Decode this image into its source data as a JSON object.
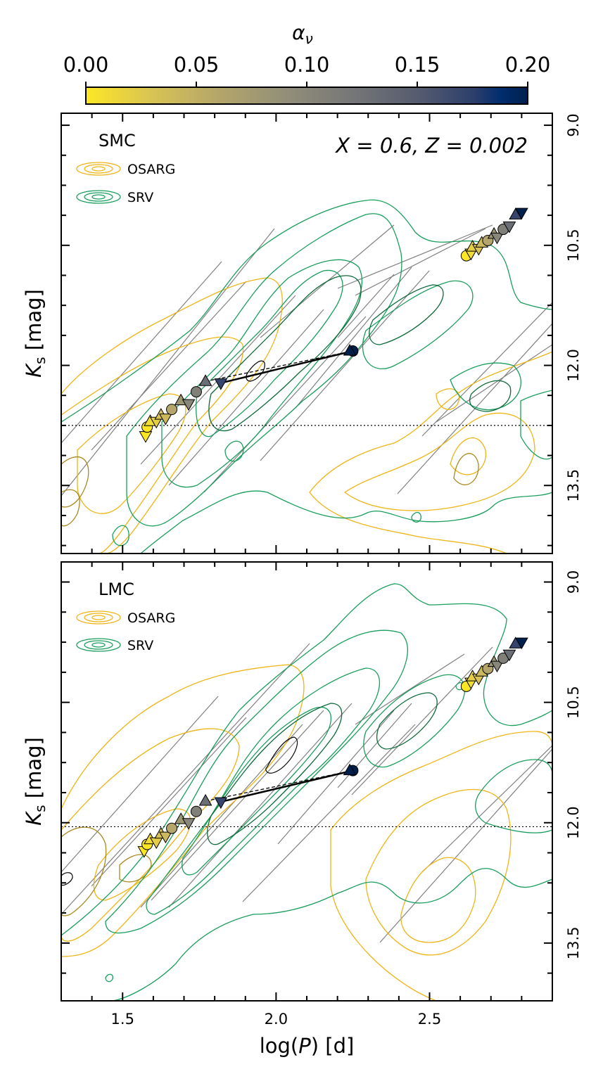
{
  "colorbar": {
    "label": "α",
    "label_sub": "ν",
    "ticks": [
      "0.00",
      "0.05",
      "0.10",
      "0.15",
      "0.20"
    ],
    "tick_values": [
      0.0,
      0.05,
      0.1,
      0.15,
      0.2
    ],
    "range": [
      0.0,
      0.2
    ],
    "colors": [
      "#fde725",
      "#c9b45a",
      "#a09c73",
      "#7b7b7b",
      "#555a6e",
      "#2e3f6e",
      "#0a2d6e",
      "#00204c"
    ]
  },
  "xaxis": {
    "label_prefix": "log(",
    "label_var": "P",
    "label_suffix": ") [d]",
    "ticks": [
      "1.5",
      "2.0",
      "2.5"
    ],
    "tick_values": [
      1.5,
      2.0,
      2.5
    ],
    "range": [
      1.3,
      2.9
    ]
  },
  "panels": [
    {
      "galaxy": "SMC",
      "annotation": "X = 0.6, Z = 0.002",
      "legend": [
        "OSARG",
        "SRV"
      ],
      "ylabel_var": "K",
      "ylabel_sub": "s",
      "ylabel_suffix": " [mag]",
      "yticks": [
        "9.0",
        "10.5",
        "12.0",
        "13.5"
      ],
      "ytick_values": [
        9.0,
        10.5,
        12.0,
        13.5
      ],
      "ylim": [
        8.85,
        14.35
      ],
      "hline": 12.75
    },
    {
      "galaxy": "LMC",
      "annotation": "",
      "legend": [
        "OSARG",
        "SRV"
      ],
      "ylabel_var": "K",
      "ylabel_sub": "s",
      "ylabel_suffix": " [mag]",
      "yticks": [
        "9.0",
        "10.5",
        "12.0",
        "13.5"
      ],
      "ytick_values": [
        9.0,
        10.5,
        12.0,
        13.5
      ],
      "ylim": [
        8.75,
        14.22
      ],
      "hline": 12.05
    }
  ],
  "colors": {
    "osarg": "#efb415",
    "osarg_dark": "#a88a20",
    "srv": "#1a9e5c",
    "srv_dark": "#0d6a3a",
    "guide_lines": "#808080"
  },
  "chart_data": [
    {
      "type": "scatter",
      "panel": "SMC",
      "x_label": "log(P) [d]",
      "y_label": "Ks [mag]",
      "xlim": [
        1.3,
        2.9
      ],
      "ylim": [
        8.85,
        14.35
      ],
      "y_inverted": true,
      "markers": [
        {
          "x": 1.575,
          "y": 12.88,
          "alpha": 0.0,
          "marker": "v"
        },
        {
          "x": 1.58,
          "y": 12.77,
          "alpha": 0.0,
          "marker": "o"
        },
        {
          "x": 1.59,
          "y": 12.7,
          "alpha": 0.01,
          "marker": "^"
        },
        {
          "x": 1.61,
          "y": 12.7,
          "alpha": 0.02,
          "marker": "v"
        },
        {
          "x": 1.625,
          "y": 12.62,
          "alpha": 0.03,
          "marker": "^"
        },
        {
          "x": 1.64,
          "y": 12.66,
          "alpha": 0.04,
          "marker": "v"
        },
        {
          "x": 1.66,
          "y": 12.55,
          "alpha": 0.06,
          "marker": "o"
        },
        {
          "x": 1.69,
          "y": 12.44,
          "alpha": 0.08,
          "marker": "^"
        },
        {
          "x": 1.715,
          "y": 12.48,
          "alpha": 0.1,
          "marker": "v"
        },
        {
          "x": 1.74,
          "y": 12.33,
          "alpha": 0.11,
          "marker": "o"
        },
        {
          "x": 1.77,
          "y": 12.2,
          "alpha": 0.13,
          "marker": "^"
        },
        {
          "x": 1.82,
          "y": 12.22,
          "alpha": 0.17,
          "marker": "v"
        },
        {
          "x": 2.25,
          "y": 11.82,
          "alpha": 0.2,
          "marker": "o"
        },
        {
          "x": 2.24,
          "y": 11.82,
          "alpha": 0.2,
          "marker": "^"
        },
        {
          "x": 2.62,
          "y": 10.63,
          "alpha": 0.0,
          "marker": "o"
        },
        {
          "x": 2.635,
          "y": 10.6,
          "alpha": 0.01,
          "marker": "v"
        },
        {
          "x": 2.64,
          "y": 10.52,
          "alpha": 0.02,
          "marker": "^"
        },
        {
          "x": 2.66,
          "y": 10.54,
          "alpha": 0.03,
          "marker": "v"
        },
        {
          "x": 2.67,
          "y": 10.47,
          "alpha": 0.04,
          "marker": "^"
        },
        {
          "x": 2.69,
          "y": 10.44,
          "alpha": 0.06,
          "marker": "o"
        },
        {
          "x": 2.71,
          "y": 10.36,
          "alpha": 0.08,
          "marker": "^"
        },
        {
          "x": 2.72,
          "y": 10.4,
          "alpha": 0.1,
          "marker": "v"
        },
        {
          "x": 2.74,
          "y": 10.3,
          "alpha": 0.11,
          "marker": "o"
        },
        {
          "x": 2.76,
          "y": 10.26,
          "alpha": 0.13,
          "marker": "v"
        },
        {
          "x": 2.78,
          "y": 10.12,
          "alpha": 0.17,
          "marker": "^"
        },
        {
          "x": 2.8,
          "y": 10.09,
          "alpha": 0.2,
          "marker": "v"
        }
      ],
      "lines": [
        {
          "style": "solid",
          "x": [
            1.82,
            2.25
          ],
          "y": [
            12.22,
            11.82
          ]
        },
        {
          "style": "dashed",
          "x": [
            1.77,
            2.25
          ],
          "y": [
            12.2,
            11.82
          ]
        },
        {
          "style": "dashed",
          "x": [
            1.82,
            2.25
          ],
          "y": [
            12.22,
            11.82
          ]
        }
      ]
    },
    {
      "type": "scatter",
      "panel": "LMC",
      "x_label": "log(P) [d]",
      "y_label": "Ks [mag]",
      "xlim": [
        1.3,
        2.9
      ],
      "ylim": [
        8.75,
        14.22
      ],
      "y_inverted": true,
      "markers": [
        {
          "x": 1.57,
          "y": 12.35,
          "alpha": 0.0,
          "marker": "v"
        },
        {
          "x": 1.58,
          "y": 12.27,
          "alpha": 0.0,
          "marker": "o"
        },
        {
          "x": 1.59,
          "y": 12.21,
          "alpha": 0.01,
          "marker": "^"
        },
        {
          "x": 1.61,
          "y": 12.24,
          "alpha": 0.02,
          "marker": "v"
        },
        {
          "x": 1.625,
          "y": 12.14,
          "alpha": 0.03,
          "marker": "^"
        },
        {
          "x": 1.64,
          "y": 12.17,
          "alpha": 0.04,
          "marker": "v"
        },
        {
          "x": 1.66,
          "y": 12.07,
          "alpha": 0.06,
          "marker": "o"
        },
        {
          "x": 1.69,
          "y": 11.96,
          "alpha": 0.08,
          "marker": "^"
        },
        {
          "x": 1.715,
          "y": 12.0,
          "alpha": 0.1,
          "marker": "v"
        },
        {
          "x": 1.74,
          "y": 11.86,
          "alpha": 0.11,
          "marker": "o"
        },
        {
          "x": 1.77,
          "y": 11.73,
          "alpha": 0.13,
          "marker": "^"
        },
        {
          "x": 1.82,
          "y": 11.74,
          "alpha": 0.17,
          "marker": "v"
        },
        {
          "x": 2.25,
          "y": 11.35,
          "alpha": 0.2,
          "marker": "o"
        },
        {
          "x": 2.24,
          "y": 11.35,
          "alpha": 0.2,
          "marker": "^"
        },
        {
          "x": 2.62,
          "y": 10.3,
          "alpha": 0.0,
          "marker": "o"
        },
        {
          "x": 2.635,
          "y": 10.25,
          "alpha": 0.01,
          "marker": "v"
        },
        {
          "x": 2.64,
          "y": 10.18,
          "alpha": 0.02,
          "marker": "^"
        },
        {
          "x": 2.66,
          "y": 10.2,
          "alpha": 0.03,
          "marker": "v"
        },
        {
          "x": 2.67,
          "y": 10.12,
          "alpha": 0.04,
          "marker": "^"
        },
        {
          "x": 2.69,
          "y": 10.08,
          "alpha": 0.06,
          "marker": "o"
        },
        {
          "x": 2.71,
          "y": 10.0,
          "alpha": 0.08,
          "marker": "^"
        },
        {
          "x": 2.72,
          "y": 10.04,
          "alpha": 0.1,
          "marker": "v"
        },
        {
          "x": 2.74,
          "y": 9.95,
          "alpha": 0.11,
          "marker": "o"
        },
        {
          "x": 2.76,
          "y": 9.9,
          "alpha": 0.13,
          "marker": "v"
        },
        {
          "x": 2.78,
          "y": 9.77,
          "alpha": 0.17,
          "marker": "^"
        },
        {
          "x": 2.8,
          "y": 9.75,
          "alpha": 0.2,
          "marker": "v"
        }
      ],
      "lines": [
        {
          "style": "solid",
          "x": [
            1.82,
            2.25
          ],
          "y": [
            11.74,
            11.35
          ]
        },
        {
          "style": "dashed",
          "x": [
            1.77,
            2.25
          ],
          "y": [
            11.73,
            11.35
          ]
        },
        {
          "style": "dashed",
          "x": [
            1.82,
            2.25
          ],
          "y": [
            11.74,
            11.35
          ]
        }
      ]
    }
  ]
}
